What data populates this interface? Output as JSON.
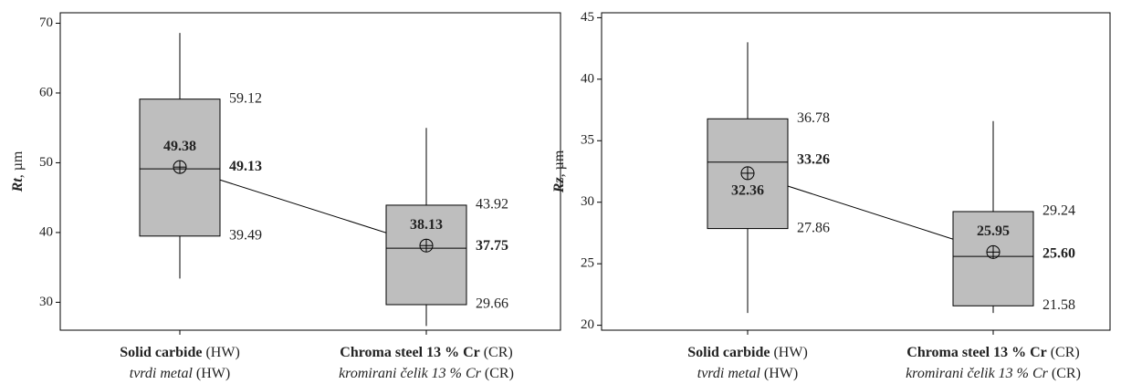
{
  "chart_data": [
    {
      "type": "box",
      "ylabel_var": "Rt",
      "ylabel_unit": ", µm",
      "ylim": [
        26,
        71.5
      ],
      "yticks": [
        30,
        40,
        50,
        60,
        70
      ],
      "categories": [
        {
          "bold": "Solid carbide",
          "rest": " (HW)",
          "italic": "tvrdi metal",
          "rest2": " (HW)"
        },
        {
          "bold": "Chroma steel 13 % Cr",
          "rest": " (CR)",
          "italic": "kromirani čelik 13 % Cr",
          "rest2": " (CR)"
        }
      ],
      "boxes": [
        {
          "whisker_low": 33.4,
          "q1": 39.49,
          "median": 49.13,
          "q3": 59.12,
          "whisker_high": 68.6,
          "mean": 49.38,
          "q1_label": "39.49",
          "median_label": "49.13",
          "q3_label": "59.12",
          "mean_label": "49.38"
        },
        {
          "whisker_low": 26.6,
          "q1": 29.66,
          "median": 37.75,
          "q3": 43.92,
          "whisker_high": 55.0,
          "mean": 38.13,
          "q1_label": "29.66",
          "median_label": "37.75",
          "q3_label": "43.92",
          "mean_label": "38.13"
        }
      ],
      "mean_label_side": [
        "above",
        "above"
      ],
      "box_color": "#bebebe"
    },
    {
      "type": "box",
      "ylabel_var": "Rz",
      "ylabel_unit": ", µm",
      "ylim": [
        19.6,
        45.4
      ],
      "yticks": [
        20,
        25,
        30,
        35,
        40,
        45
      ],
      "categories": [
        {
          "bold": "Solid carbide",
          "rest": " (HW)",
          "italic": "tvrdi metal",
          "rest2": " (HW)"
        },
        {
          "bold": "Chroma steel 13 % Cr",
          "rest": " (CR)",
          "italic": "kromirani čelik 13 % Cr",
          "rest2": " (CR)"
        }
      ],
      "boxes": [
        {
          "whisker_low": 21.0,
          "q1": 27.86,
          "median": 33.26,
          "q3": 36.78,
          "whisker_high": 43.0,
          "mean": 32.36,
          "q1_label": "27.86",
          "median_label": "33.26",
          "q3_label": "36.78",
          "mean_label": "32.36"
        },
        {
          "whisker_low": 21.0,
          "q1": 21.58,
          "median": 25.6,
          "q3": 29.24,
          "whisker_high": 36.6,
          "mean": 25.95,
          "q1_label": "21.58",
          "median_label": "25.60",
          "q3_label": "29.24",
          "mean_label": "25.95"
        }
      ],
      "mean_label_side": [
        "below",
        "above"
      ],
      "box_color": "#bebebe"
    }
  ]
}
